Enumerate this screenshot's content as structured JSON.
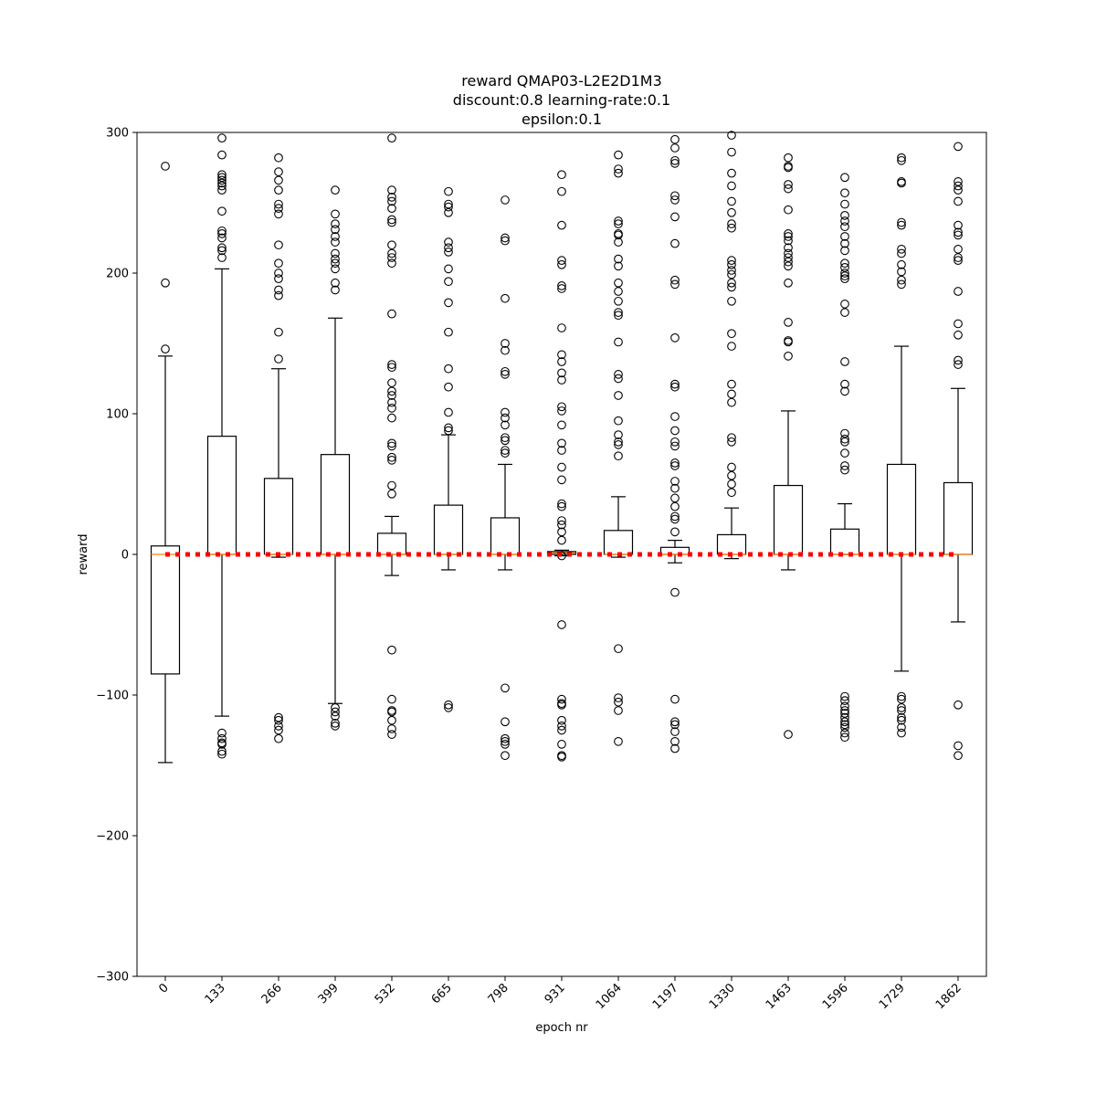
{
  "chart_data": {
    "type": "box",
    "title_lines": [
      "reward QMAP03-L2E2D1M3",
      "discount:0.8 learning-rate:0.1",
      "epsilon:0.1"
    ],
    "xlabel": "epoch nr",
    "ylabel": "reward",
    "ylim": [
      -300,
      300
    ],
    "yticks": [
      -300,
      -200,
      -100,
      0,
      100,
      200,
      300
    ],
    "yticklabels": [
      "−300",
      "−200",
      "−100",
      "0",
      "100",
      "200",
      "300"
    ],
    "grid": false,
    "reference_line": {
      "y": 0,
      "style": "dotted",
      "color": "#ff0000"
    },
    "colors": {
      "box": "#000000",
      "median": "#ff7f0e",
      "reference": "#ff0000"
    },
    "categories": [
      "0",
      "133",
      "266",
      "399",
      "532",
      "665",
      "798",
      "931",
      "1064",
      "1197",
      "1330",
      "1463",
      "1596",
      "1729",
      "1862"
    ],
    "boxes": [
      {
        "q1": -85,
        "median": 0,
        "q3": 6,
        "whisker_low": -148,
        "whisker_high": 141,
        "outliers": [
          276,
          193,
          146
        ]
      },
      {
        "q1": 0,
        "median": 0,
        "q3": 84,
        "whisker_low": -115,
        "whisker_high": 203,
        "outliers": [
          296,
          284,
          270,
          268,
          266,
          264,
          262,
          259,
          244,
          230,
          228,
          225,
          218,
          216,
          211,
          -127,
          -131,
          -134,
          -135,
          -140,
          -142
        ]
      },
      {
        "q1": 0,
        "median": 0,
        "q3": 54,
        "whisker_low": -2,
        "whisker_high": 132,
        "outliers": [
          282,
          272,
          266,
          259,
          249,
          246,
          242,
          220,
          207,
          200,
          196,
          188,
          184,
          158,
          139,
          -116,
          -118,
          -122,
          -125,
          -131
        ]
      },
      {
        "q1": 0,
        "median": 0,
        "q3": 71,
        "whisker_low": -106,
        "whisker_high": 168,
        "outliers": [
          259,
          242,
          235,
          231,
          226,
          222,
          214,
          210,
          207,
          203,
          193,
          188,
          -109,
          -112,
          -115,
          -120,
          -122
        ]
      },
      {
        "q1": 0,
        "median": 0,
        "q3": 15,
        "whisker_low": -15,
        "whisker_high": 27,
        "outliers": [
          296,
          259,
          254,
          251,
          246,
          238,
          236,
          220,
          214,
          211,
          207,
          171,
          135,
          133,
          122,
          116,
          113,
          108,
          104,
          97,
          79,
          77,
          69,
          67,
          49,
          43,
          -68,
          -103,
          -111,
          -112,
          -118,
          -124,
          -128
        ]
      },
      {
        "q1": 0,
        "median": 0,
        "q3": 35,
        "whisker_low": -11,
        "whisker_high": 85,
        "outliers": [
          258,
          249,
          247,
          243,
          222,
          218,
          215,
          203,
          194,
          179,
          158,
          132,
          119,
          101,
          90,
          88,
          -107,
          -109
        ]
      },
      {
        "q1": 0,
        "median": 0,
        "q3": 26,
        "whisker_low": -11,
        "whisker_high": 64,
        "outliers": [
          252,
          225,
          223,
          182,
          150,
          145,
          130,
          128,
          101,
          97,
          92,
          83,
          81,
          74,
          72,
          -95,
          -119,
          -131,
          -133,
          -135,
          -143
        ]
      },
      {
        "q1": 0,
        "median": 1,
        "q3": 2,
        "whisker_low": -1,
        "whisker_high": 3,
        "outliers": [
          270,
          258,
          234,
          209,
          206,
          191,
          189,
          161,
          142,
          137,
          129,
          124,
          105,
          102,
          92,
          79,
          74,
          62,
          53,
          36,
          34,
          24,
          21,
          16,
          10,
          -1,
          -50,
          -103,
          -106,
          -107,
          -118,
          -122,
          -125,
          -135,
          -143,
          -144
        ]
      },
      {
        "q1": 0,
        "median": 0,
        "q3": 17,
        "whisker_low": -2,
        "whisker_high": 41,
        "outliers": [
          284,
          274,
          271,
          237,
          235,
          228,
          227,
          222,
          210,
          205,
          193,
          187,
          180,
          172,
          170,
          151,
          128,
          125,
          113,
          95,
          85,
          80,
          78,
          70,
          -67,
          -102,
          -105,
          -111,
          -133
        ]
      },
      {
        "q1": 0,
        "median": 0,
        "q3": 5,
        "whisker_low": -6,
        "whisker_high": 10,
        "outliers": [
          295,
          289,
          280,
          278,
          255,
          252,
          240,
          221,
          195,
          192,
          154,
          121,
          119,
          98,
          88,
          80,
          77,
          65,
          63,
          52,
          47,
          40,
          34,
          27,
          25,
          16,
          -27,
          -103,
          -119,
          -121,
          -126,
          -133,
          -138
        ]
      },
      {
        "q1": 0,
        "median": 0,
        "q3": 14,
        "whisker_low": -3,
        "whisker_high": 33,
        "outliers": [
          298,
          286,
          271,
          262,
          251,
          243,
          235,
          232,
          209,
          206,
          202,
          199,
          193,
          190,
          180,
          157,
          148,
          121,
          114,
          108,
          83,
          80,
          62,
          56,
          50,
          44
        ]
      },
      {
        "q1": 0,
        "median": 0,
        "q3": 49,
        "whisker_low": -11,
        "whisker_high": 102,
        "outliers": [
          282,
          276,
          275,
          263,
          260,
          245,
          228,
          226,
          223,
          218,
          214,
          211,
          208,
          205,
          193,
          165,
          152,
          151,
          141,
          -128
        ]
      },
      {
        "q1": 0,
        "median": 0,
        "q3": 18,
        "whisker_low": 0,
        "whisker_high": 36,
        "outliers": [
          268,
          257,
          249,
          241,
          237,
          233,
          226,
          221,
          216,
          207,
          204,
          200,
          198,
          196,
          178,
          172,
          137,
          121,
          116,
          86,
          82,
          80,
          72,
          63,
          60,
          -101,
          -104,
          -108,
          -111,
          -113,
          -116,
          -119,
          -121,
          -123,
          -127,
          -130
        ]
      },
      {
        "q1": 0,
        "median": 0,
        "q3": 64,
        "whisker_low": -83,
        "whisker_high": 148,
        "outliers": [
          282,
          280,
          265,
          264,
          236,
          234,
          217,
          214,
          206,
          201,
          195,
          192,
          -101,
          -103,
          -109,
          -111,
          -116,
          -118,
          -123,
          -127
        ]
      },
      {
        "q1": 0,
        "median": 0,
        "q3": 51,
        "whisker_low": -48,
        "whisker_high": 118,
        "outliers": [
          290,
          265,
          262,
          259,
          251,
          234,
          229,
          227,
          217,
          211,
          209,
          187,
          164,
          156,
          138,
          135,
          -107,
          -136,
          -143
        ]
      }
    ]
  }
}
